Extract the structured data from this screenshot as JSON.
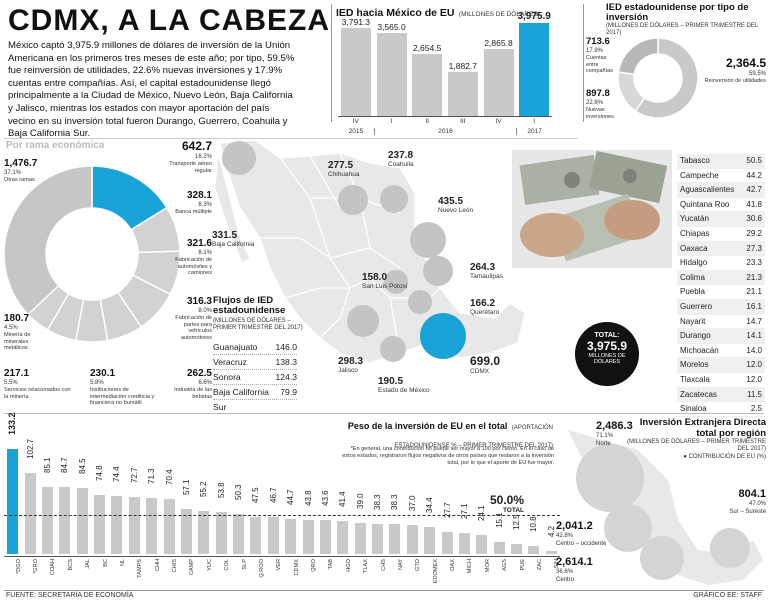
{
  "title": "CDMX, A LA CABEZA",
  "intro": "México captó 3,975.9 millones de dólares de inversión de la Unión Americana en los primeros tres meses de este año; por tipo, 59.5% fue reinversión de utilidades, 22.6% nuevas inversiones y 17.9% cuentas entre compañías. Así, el capital estadounidense llegó principalmente a la Ciudad de México, Nuevo León, Baja California y Jalisco, mientras los estados con mayor aportación del país vecino en su inversión total fueron Durango, Guerrero, Coahuila y Baja California Sur.",
  "colors": {
    "accent": "#1aa3d9",
    "gray": "#c9c9c9",
    "dark": "#111111",
    "circle": "#bbbbbb"
  },
  "quarterly": {
    "title": "IED hacia México de EU",
    "subtitle": "(MILLONES DE DÓLARES)"
  },
  "by_type": {
    "title": "IED estadounidense por tipo de inversión",
    "subtitle": "(MILLONES DE DÓLARES – PRIMER TRIMESTRE DEL 2017)",
    "items": [
      {
        "value": "713.6",
        "pct": "17.9%",
        "name": "Cuentas entre compañías"
      },
      {
        "value": "897.8",
        "pct": "22.6%",
        "name": "Nuevas inversiones"
      },
      {
        "value": "2,364.5",
        "pct": "59.5%",
        "name": "Reinversión de utilidades"
      }
    ]
  },
  "sector": {
    "title": "Por rama económica",
    "items": [
      {
        "value": "642.7",
        "pct": "16.2%",
        "name": "Transporte aéreo regular"
      },
      {
        "value": "328.1",
        "pct": "8.3%",
        "name": "Banca múltiple"
      },
      {
        "value": "321.6",
        "pct": "8.1%",
        "name": "Fabricación de automóviles y camiones"
      },
      {
        "value": "316.3",
        "pct": "8.0%",
        "name": "Fabricación de partes para vehículos automotores"
      },
      {
        "value": "262.5",
        "pct": "6.6%",
        "name": "Industria de las bebidas"
      },
      {
        "value": "230.1",
        "pct": "5.8%",
        "name": "Instituciones de intermediación crediticia y financiera no bursátil"
      },
      {
        "value": "217.1",
        "pct": "5.5%",
        "name": "Servicios relacionados con la minería"
      },
      {
        "value": "180.7",
        "pct": "4.5%",
        "name": "Minería de minerales metálicos"
      },
      {
        "value": "1,476.7",
        "pct": "37.1%",
        "name": "Otras ramas"
      }
    ]
  },
  "map": {
    "states": [
      {
        "value": "331.5",
        "name": "Baja California"
      },
      {
        "value": "277.5",
        "name": "Chihuahua"
      },
      {
        "value": "237.8",
        "name": "Coahuila"
      },
      {
        "value": "435.5",
        "name": "Nuevo León"
      },
      {
        "value": "264.3",
        "name": "Tamaulipas"
      },
      {
        "value": "158.0",
        "name": "San Luis Potosí"
      },
      {
        "value": "166.2",
        "name": "Querétaro"
      },
      {
        "value": "298.3",
        "name": "Jalisco"
      },
      {
        "value": "190.5",
        "name": "Estado de México"
      },
      {
        "value": "699.0",
        "name": "CDMX"
      }
    ],
    "total_label": "TOTAL:",
    "total_value": "3,975.9",
    "total_unit": "MILLONES DE DÓLARES"
  },
  "flows": {
    "title": "Flujos de IED estadounidense",
    "subtitle": "(MILLONES DE DÓLARES – PRIMER TRIMESTRE DEL 2017)",
    "rows": [
      {
        "name": "Guanajuato",
        "value": "146.0"
      },
      {
        "name": "Veracruz",
        "value": "138.3"
      },
      {
        "name": "Sonora",
        "value": "124.3"
      },
      {
        "name": "Baja California Sur",
        "value": "79.9"
      }
    ]
  },
  "ranking": [
    {
      "name": "Tabasco",
      "value": "50.5"
    },
    {
      "name": "Campeche",
      "value": "44.2"
    },
    {
      "name": "Aguascalientes",
      "value": "42.7"
    },
    {
      "name": "Quintana Roo",
      "value": "41.8"
    },
    {
      "name": "Yucatán",
      "value": "30.6"
    },
    {
      "name": "Chiapas",
      "value": "29.2"
    },
    {
      "name": "Oaxaca",
      "value": "27.3"
    },
    {
      "name": "Hidalgo",
      "value": "23.3"
    },
    {
      "name": "Colima",
      "value": "21.3"
    },
    {
      "name": "Puebla",
      "value": "21.1"
    },
    {
      "name": "Guerrero",
      "value": "16.1"
    },
    {
      "name": "Nayarit",
      "value": "14.7"
    },
    {
      "name": "Durango",
      "value": "14.1"
    },
    {
      "name": "Michoacán",
      "value": "14.0"
    },
    {
      "name": "Morelos",
      "value": "12.0"
    },
    {
      "name": "Tlaxcala",
      "value": "12.0"
    },
    {
      "name": "Zacatecas",
      "value": "11.5"
    },
    {
      "name": "Sinaloa",
      "value": "2.5"
    }
  ],
  "weight": {
    "title": "Peso de la inversión de EU en el total",
    "subtitle": "(APORTACIÓN ESTADOUNIDENSE % – PRIMER TRIMESTRE DEL 2017)",
    "note": "*En general, una contribución no puede ser mayor a 100 por ciento. En el caso de estos estados, registraron flujos negativos de otros países que restaron a la inversión total, por lo que el aporte de EU fue mayor.",
    "avg_value": "50.0%",
    "avg_label": "TOTAL"
  },
  "region": {
    "title": "Inversión Extranjera Directa total por región",
    "subtitle": "(MILLONES DE DÓLARES – PRIMER TRIMESTRE DEL 2017)",
    "legend": "● CONTRIBUCIÓN DE EU (%)",
    "items": [
      {
        "value": "2,486.3",
        "pct": "71.1%",
        "name": "Norte"
      },
      {
        "value": "804.1",
        "pct": "47.0%",
        "name": "Sur – Sureste"
      },
      {
        "value": "2,041.2",
        "pct": "42.8%",
        "name": "Centro – occidente"
      },
      {
        "value": "2,614.1",
        "pct": "36.6%",
        "name": "Centro"
      }
    ]
  },
  "source": "FUENTE: SECRETARÍA DE ECONOMÍA",
  "credit": "GRÁFICO EE: STAFF",
  "chart_data": [
    {
      "type": "bar",
      "title": "IED hacia México de EU",
      "ylabel": "Millones de dólares",
      "categories": [
        "IV",
        "I",
        "II",
        "III",
        "IV",
        "I"
      ],
      "years": [
        "2015",
        "2016",
        "2017"
      ],
      "values": [
        3791.3,
        3565.0,
        2654.5,
        1882.7,
        2865.8,
        3975.9
      ],
      "labels": [
        "3,791.3",
        "3,565.0",
        "2,654.5",
        "1,882.7",
        "2,865.8",
        "3,975.9"
      ],
      "ylim": [
        0,
        4200
      ],
      "highlight": 5
    },
    {
      "type": "pie",
      "title": "IED estadounidense por tipo de inversión",
      "slices": [
        {
          "name": "Reinversión de utilidades",
          "value": 59.5
        },
        {
          "name": "Cuentas entre compañías",
          "value": 17.9
        },
        {
          "name": "Nuevas inversiones",
          "value": 22.6
        }
      ]
    },
    {
      "type": "pie",
      "title": "Por rama económica",
      "slices": [
        {
          "name": "Transporte aéreo regular",
          "value": 16.2
        },
        {
          "name": "Banca múltiple",
          "value": 8.3
        },
        {
          "name": "Fabricación de automóviles y camiones",
          "value": 8.1
        },
        {
          "name": "Fabricación de partes para vehículos automotores",
          "value": 8.0
        },
        {
          "name": "Industria de las bebidas",
          "value": 6.6
        },
        {
          "name": "Instituciones de intermediación crediticia",
          "value": 5.8
        },
        {
          "name": "Servicios relacionados con la minería",
          "value": 5.5
        },
        {
          "name": "Minería de minerales metálicos",
          "value": 4.5
        },
        {
          "name": "Otras ramas",
          "value": 37.1
        }
      ],
      "highlight": 0
    },
    {
      "type": "bar",
      "title": "Peso de la inversión de EU en el total",
      "categories": [
        "*DGO",
        "*GRO",
        "COAH",
        "BCS",
        "JAL",
        "BC",
        "NL",
        "TAMPS",
        "CHH",
        "CHIS",
        "CAMP",
        "YUC",
        "COL",
        "SLP",
        "Q.ROO",
        "VER",
        "CDMX",
        "QRO",
        "TAB",
        "HGO",
        "TLAX",
        "CHS",
        "NAY",
        "GTO",
        "EDOMEX",
        "OAX",
        "MICH",
        "MOR",
        "AGS",
        "PUE",
        "ZAC",
        "SIN"
      ],
      "values": [
        133.2,
        102.7,
        85.1,
        84.7,
        84.5,
        74.8,
        74.4,
        72.7,
        71.3,
        70.4,
        57.1,
        55.2,
        53.8,
        50.3,
        47.5,
        46.7,
        44.7,
        43.8,
        43.6,
        41.4,
        39.0,
        38.3,
        38.3,
        37.0,
        34.4,
        27.7,
        27.1,
        24.1,
        15.1,
        12.5,
        10.8,
        4.2
      ],
      "labels": [
        "133.2",
        "102.7",
        "85.1",
        "84.7",
        "84.5",
        "74.8",
        "74.4",
        "72.7",
        "71.3",
        "70.4",
        "57.1",
        "55.2",
        "53.8",
        "50.3",
        "47.5",
        "46.7",
        "44.7",
        "43.8",
        "43.6",
        "41.4",
        "39.0",
        "38.3",
        "38.3",
        "37.0",
        "34.4",
        "27.7",
        "27.1",
        "24.1",
        "15.1",
        "12.5",
        "10.8",
        "4.2"
      ],
      "reference": 50.0,
      "ylim": [
        0,
        140
      ],
      "highlight": 0
    }
  ]
}
